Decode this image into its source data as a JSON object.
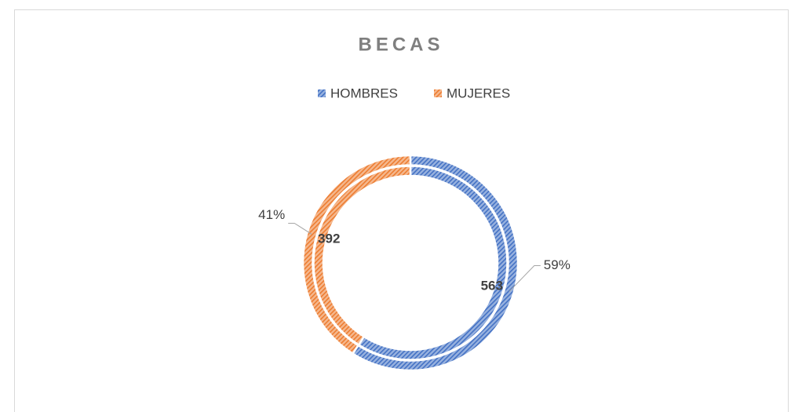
{
  "chart_data": {
    "type": "doughnut",
    "title": "BECAS",
    "categories": [
      "HOMBRES",
      "MUJERES"
    ],
    "colors": [
      "#4472c4",
      "#ed7d31"
    ],
    "series": [
      {
        "values": [
          563,
          392
        ]
      },
      {
        "values": [
          59,
          41
        ],
        "value_labels": [
          "59%",
          "41%"
        ]
      }
    ],
    "legend": "top"
  }
}
